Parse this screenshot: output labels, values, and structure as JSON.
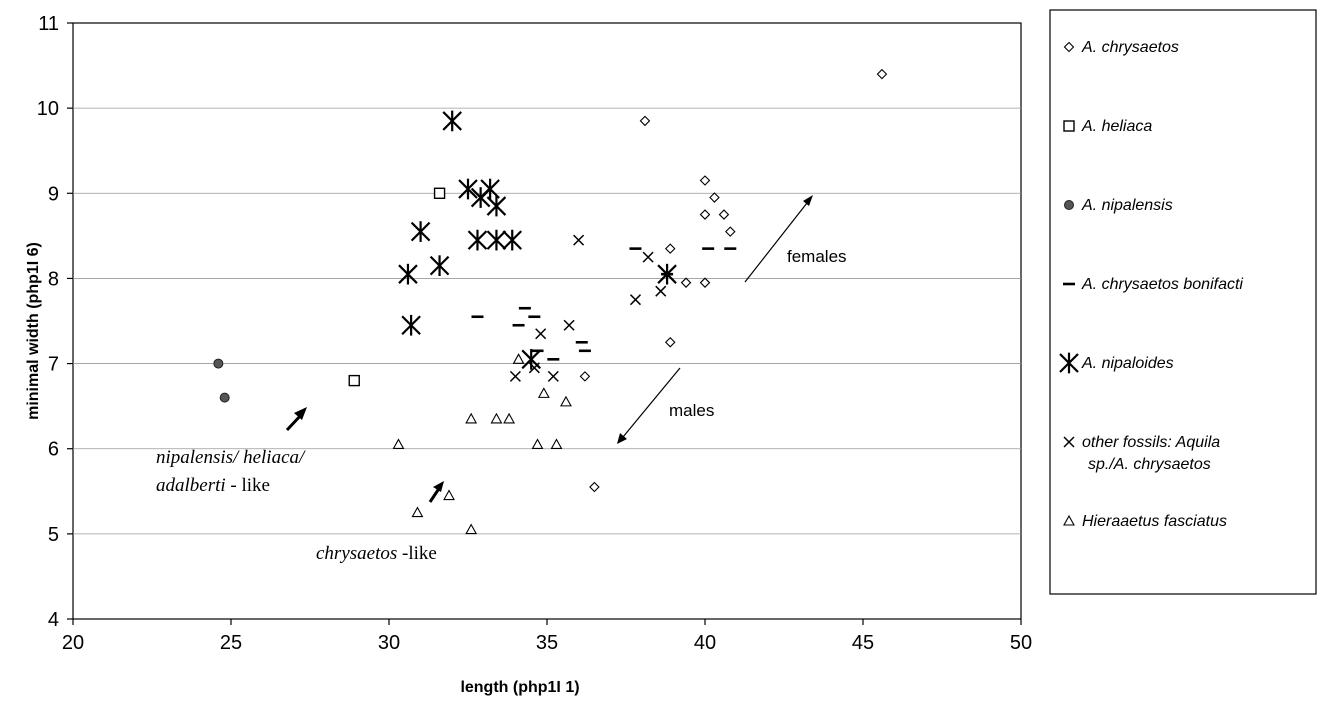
{
  "chart_data": {
    "type": "scatter",
    "title": "",
    "xlabel": "length (php1I 1)",
    "ylabel": "minimal width (php1I 6)",
    "xlim": [
      20,
      50
    ],
    "ylim": [
      4,
      11
    ],
    "xticks": [
      "20",
      "25",
      "30",
      "35",
      "40",
      "45",
      "50"
    ],
    "yticks": [
      "4",
      "5",
      "6",
      "7",
      "8",
      "9",
      "10",
      "11"
    ],
    "grid": "horizontal",
    "legend_position": "right",
    "series": [
      {
        "name": "A. chrysaetos",
        "marker": "diamond",
        "points": [
          [
            45.6,
            10.4
          ],
          [
            38.1,
            9.85
          ],
          [
            40.0,
            9.15
          ],
          [
            40.3,
            8.95
          ],
          [
            40.6,
            8.75
          ],
          [
            40.0,
            8.75
          ],
          [
            40.8,
            8.55
          ],
          [
            38.9,
            8.35
          ],
          [
            39.4,
            7.95
          ],
          [
            40.0,
            7.95
          ],
          [
            38.9,
            7.25
          ],
          [
            36.2,
            6.85
          ],
          [
            36.5,
            5.55
          ]
        ]
      },
      {
        "name": "A. heliaca",
        "marker": "square",
        "points": [
          [
            31.6,
            9.0
          ],
          [
            28.9,
            6.8
          ]
        ]
      },
      {
        "name": "A. nipalensis",
        "marker": "circle",
        "points": [
          [
            24.6,
            7.0
          ],
          [
            24.8,
            6.6
          ]
        ]
      },
      {
        "name": "A. chrysaetos bonifacti",
        "marker": "dash",
        "points": [
          [
            37.8,
            8.35
          ],
          [
            40.1,
            8.35
          ],
          [
            40.8,
            8.35
          ],
          [
            38.8,
            8.05
          ],
          [
            32.8,
            7.55
          ],
          [
            34.3,
            7.65
          ],
          [
            34.6,
            7.55
          ],
          [
            34.1,
            7.45
          ],
          [
            34.7,
            7.15
          ],
          [
            35.2,
            7.05
          ],
          [
            36.1,
            7.25
          ],
          [
            36.2,
            7.15
          ]
        ]
      },
      {
        "name": "A. nipaloides",
        "marker": "asterisk",
        "points": [
          [
            32.0,
            9.85
          ],
          [
            32.5,
            9.05
          ],
          [
            33.2,
            9.05
          ],
          [
            32.9,
            8.95
          ],
          [
            33.4,
            8.85
          ],
          [
            31.0,
            8.55
          ],
          [
            32.8,
            8.45
          ],
          [
            33.4,
            8.45
          ],
          [
            33.9,
            8.45
          ],
          [
            30.6,
            8.05
          ],
          [
            31.6,
            8.15
          ],
          [
            30.7,
            7.45
          ],
          [
            38.8,
            8.05
          ],
          [
            34.5,
            7.05
          ]
        ]
      },
      {
        "name": "other fossils: Aquila sp./A. chrysaetos",
        "marker": "x",
        "points": [
          [
            36.0,
            8.45
          ],
          [
            38.2,
            8.25
          ],
          [
            37.8,
            7.75
          ],
          [
            38.6,
            7.85
          ],
          [
            35.7,
            7.45
          ],
          [
            34.8,
            7.35
          ],
          [
            34.6,
            6.95
          ],
          [
            34.0,
            6.85
          ],
          [
            35.2,
            6.85
          ]
        ]
      },
      {
        "name": "Hieraaetus fasciatus",
        "marker": "triangle",
        "points": [
          [
            34.1,
            7.05
          ],
          [
            34.9,
            6.65
          ],
          [
            35.6,
            6.55
          ],
          [
            32.6,
            6.35
          ],
          [
            33.4,
            6.35
          ],
          [
            33.8,
            6.35
          ],
          [
            30.3,
            6.05
          ],
          [
            34.7,
            6.05
          ],
          [
            35.3,
            6.05
          ],
          [
            30.9,
            5.25
          ],
          [
            31.9,
            5.45
          ],
          [
            32.6,
            5.05
          ]
        ]
      }
    ],
    "annotations": {
      "females": "females",
      "males": "males",
      "nipalensis_line1": "nipalensis/ heliaca/",
      "nipalensis_line2_italic": "adalberti",
      "nipalensis_line2_rest": " - like",
      "chrysaetos_italic": "chrysaetos",
      "chrysaetos_rest": " -like"
    },
    "legend": [
      {
        "label": "A. chrysaetos",
        "marker": "diamond"
      },
      {
        "label": "A. heliaca",
        "marker": "square"
      },
      {
        "label": "A. nipalensis",
        "marker": "circle"
      },
      {
        "label": "A. chrysaetos bonifacti",
        "marker": "dash"
      },
      {
        "label": "A. nipaloides",
        "marker": "asterisk"
      },
      {
        "label": "other fossils: Aquila",
        "label2": "sp./A. chrysaetos",
        "marker": "x"
      },
      {
        "label": "Hieraaetus fasciatus",
        "marker": "triangle"
      }
    ]
  }
}
